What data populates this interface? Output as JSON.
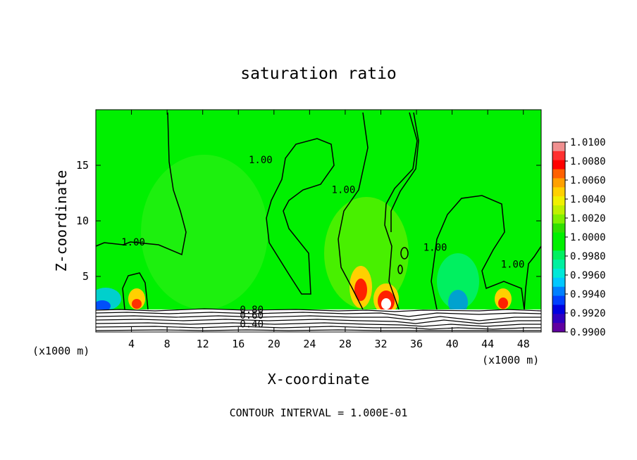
{
  "chart_data": {
    "type": "heatmap",
    "title": "saturation ratio",
    "xlabel": "X-coordinate",
    "ylabel": "Z-coordinate",
    "x_unit_left": "(x1000 m)",
    "x_unit_right": "(x1000 m)",
    "footer": "CONTOUR INTERVAL = 1.000E-01",
    "xlim": [
      0,
      50
    ],
    "ylim": [
      0,
      20
    ],
    "x_ticks": [
      4,
      8,
      12,
      16,
      20,
      24,
      28,
      32,
      36,
      40,
      44,
      48
    ],
    "x_tick_labels": [
      "4",
      "8",
      "12",
      "16",
      "20",
      "24",
      "28",
      "32",
      "36",
      "40",
      "44",
      "48"
    ],
    "y_ticks": [
      5,
      10,
      15
    ],
    "y_tick_labels": [
      "5",
      "10",
      "15"
    ],
    "colorbar": {
      "labels": [
        "1.0100",
        "1.0080",
        "1.0060",
        "1.0040",
        "1.0020",
        "1.0000",
        "0.9980",
        "0.9960",
        "0.9940",
        "0.9920",
        "0.9900"
      ],
      "colors": [
        "#f09090",
        "#ff3030",
        "#ff0000",
        "#ff6000",
        "#ffa000",
        "#ffd000",
        "#f0f000",
        "#c0f000",
        "#80f000",
        "#30e000",
        "#00f000",
        "#00f000",
        "#00f060",
        "#00f0a0",
        "#00e8d8",
        "#00c8ff",
        "#0080ff",
        "#0040ff",
        "#0000e0",
        "#3000c0",
        "#6000a0"
      ]
    },
    "background_color": "#00f000",
    "contour_labels": [
      {
        "text": "1.00",
        "x": 4.2,
        "z": 7.8
      },
      {
        "text": "1.00",
        "x": 18.5,
        "z": 15.2
      },
      {
        "text": "1.00",
        "x": 27.8,
        "z": 12.5
      },
      {
        "text": "1.00",
        "x": 38.1,
        "z": 7.3
      },
      {
        "text": "1.00",
        "x": 46.8,
        "z": 5.8
      },
      {
        "text": "0.80",
        "x": 17.5,
        "z": 1.7
      },
      {
        "text": "0.60",
        "x": 17.5,
        "z": 1.2
      },
      {
        "text": "0.40",
        "x": 17.5,
        "z": 0.4
      }
    ],
    "hotspots": [
      {
        "x": 4.6,
        "z": 2.5,
        "peak": 1.006
      },
      {
        "x": 29.8,
        "z": 3.8,
        "peak": 1.007
      },
      {
        "x": 32.0,
        "z": 2.4,
        "peak": 1.01
      },
      {
        "x": 45.8,
        "z": 2.6,
        "peak": 1.007
      }
    ],
    "coldspots": [
      {
        "x": 0.6,
        "z": 2.2,
        "min": 0.994
      },
      {
        "x": 40.5,
        "z": 2.6,
        "min": 0.994
      }
    ]
  }
}
